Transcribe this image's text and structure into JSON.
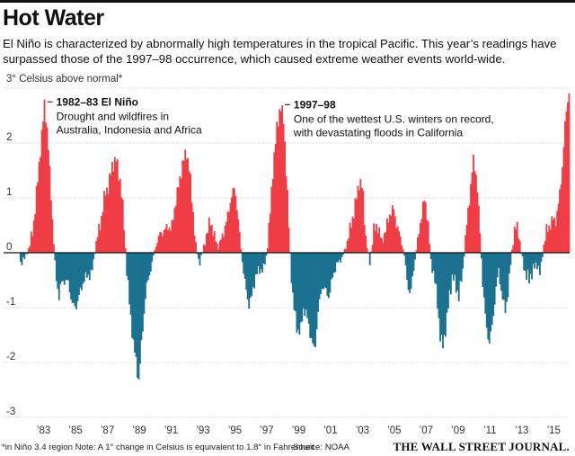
{
  "header": {
    "title": "Hot Water",
    "subtitle": "El Niño is characterized by abnormally high temperatures in the tropical Pacific. This year’s readings have surpassed those of the 1997–98 occurrence, which caused extreme weather events world-wide."
  },
  "footer": {
    "note": "*in Niño 3.4 region    Note: A 1° change in Celsius is equivalent to 1.8° in Fahrenheit",
    "source": "Source: NOAA",
    "logo": "THE WALL STREET JOURNAL."
  },
  "colors": {
    "positive": "#f03c44",
    "negative": "#1a7190"
  },
  "chart_data": {
    "type": "bar",
    "unit_label": "3° Celsius above normal*",
    "ylim": [
      -3,
      3
    ],
    "yticks": [
      3,
      2,
      1,
      0,
      -1,
      -2,
      -3
    ],
    "ytick_labels": [
      "3°",
      "2",
      "1",
      "0",
      "-1",
      "-2",
      "-3"
    ],
    "xlim": [
      1981.5,
      2016.0
    ],
    "xticks": [
      1983,
      1985,
      1987,
      1989,
      1991,
      1993,
      1995,
      1997,
      1999,
      2001,
      2003,
      2005,
      2007,
      2009,
      2011,
      2013,
      2015
    ],
    "xtick_labels": [
      "’83",
      "’85",
      "’87",
      "’89",
      "’91",
      "’93",
      "’95",
      "’97",
      "’99",
      "’01",
      "’03",
      "’05",
      "’07",
      "’09",
      "’11",
      "’13",
      "’15"
    ],
    "grid": true,
    "annotations": [
      {
        "title": "1982–83 El Niño",
        "text": [
          "Drought and wildfires in",
          "Australia, Indonesia and Africa"
        ],
        "x": 1983.0,
        "y": 2.75
      },
      {
        "title": "1997–98",
        "text": [
          "One of the wettest U.S. winters on record,",
          "with devastating floods in California"
        ],
        "x": 1997.9,
        "y": 2.7
      }
    ],
    "anchors": [
      [
        1981.5,
        -0.2
      ],
      [
        1981.8,
        -0.1
      ],
      [
        1982.1,
        0.1
      ],
      [
        1982.4,
        0.6
      ],
      [
        1982.7,
        1.6
      ],
      [
        1982.9,
        2.2
      ],
      [
        1983.05,
        2.75
      ],
      [
        1983.25,
        2.1
      ],
      [
        1983.45,
        1.1
      ],
      [
        1983.6,
        0.3
      ],
      [
        1983.75,
        -0.4
      ],
      [
        1983.95,
        -0.8
      ],
      [
        1984.1,
        -0.55
      ],
      [
        1984.3,
        -0.5
      ],
      [
        1984.55,
        -0.55
      ],
      [
        1984.8,
        -0.95
      ],
      [
        1985.0,
        -1.0
      ],
      [
        1985.25,
        -0.75
      ],
      [
        1985.5,
        -0.5
      ],
      [
        1985.8,
        -0.4
      ],
      [
        1986.0,
        -0.4
      ],
      [
        1986.3,
        0.2
      ],
      [
        1986.6,
        0.6
      ],
      [
        1986.85,
        1.1
      ],
      [
        1987.05,
        1.2
      ],
      [
        1987.3,
        1.6
      ],
      [
        1987.55,
        1.7
      ],
      [
        1987.8,
        1.3
      ],
      [
        1988.0,
        0.7
      ],
      [
        1988.2,
        -0.3
      ],
      [
        1988.4,
        -1.0
      ],
      [
        1988.6,
        -1.6
      ],
      [
        1988.8,
        -2.0
      ],
      [
        1988.95,
        -2.35
      ],
      [
        1989.15,
        -1.6
      ],
      [
        1989.4,
        -0.7
      ],
      [
        1989.7,
        -0.3
      ],
      [
        1990.0,
        0.1
      ],
      [
        1990.3,
        0.35
      ],
      [
        1990.6,
        0.4
      ],
      [
        1990.8,
        0.5
      ],
      [
        1991.0,
        0.4
      ],
      [
        1991.2,
        0.8
      ],
      [
        1991.45,
        1.2
      ],
      [
        1991.7,
        1.6
      ],
      [
        1991.95,
        1.85
      ],
      [
        1992.15,
        1.5
      ],
      [
        1992.35,
        0.8
      ],
      [
        1992.55,
        0.1
      ],
      [
        1992.75,
        -0.2
      ],
      [
        1992.95,
        0.0
      ],
      [
        1993.2,
        0.3
      ],
      [
        1993.45,
        0.6
      ],
      [
        1993.7,
        0.3
      ],
      [
        1993.95,
        0.1
      ],
      [
        1994.2,
        0.3
      ],
      [
        1994.5,
        0.6
      ],
      [
        1994.75,
        1.0
      ],
      [
        1995.0,
        1.2
      ],
      [
        1995.2,
        0.6
      ],
      [
        1995.4,
        0.0
      ],
      [
        1995.6,
        -0.5
      ],
      [
        1995.85,
        -0.95
      ],
      [
        1996.05,
        -0.8
      ],
      [
        1996.3,
        -0.4
      ],
      [
        1996.6,
        -0.3
      ],
      [
        1996.8,
        -0.3
      ],
      [
        1997.0,
        0.0
      ],
      [
        1997.2,
        0.7
      ],
      [
        1997.4,
        1.6
      ],
      [
        1997.6,
        2.2
      ],
      [
        1997.85,
        2.7
      ],
      [
        1998.05,
        2.4
      ],
      [
        1998.25,
        1.3
      ],
      [
        1998.45,
        0.0
      ],
      [
        1998.65,
        -0.9
      ],
      [
        1998.9,
        -1.4
      ],
      [
        1999.1,
        -1.45
      ],
      [
        1999.3,
        -1.0
      ],
      [
        1999.55,
        -1.2
      ],
      [
        1999.8,
        -1.6
      ],
      [
        2000.0,
        -1.8
      ],
      [
        2000.2,
        -1.1
      ],
      [
        2000.45,
        -0.6
      ],
      [
        2000.7,
        -0.7
      ],
      [
        2000.9,
        -0.8
      ],
      [
        2001.15,
        -0.4
      ],
      [
        2001.4,
        -0.2
      ],
      [
        2001.7,
        -0.1
      ],
      [
        2001.95,
        0.1
      ],
      [
        2002.2,
        0.4
      ],
      [
        2002.5,
        0.8
      ],
      [
        2002.8,
        1.3
      ],
      [
        2003.0,
        1.2
      ],
      [
        2003.2,
        0.3
      ],
      [
        2003.45,
        -0.2
      ],
      [
        2003.7,
        0.4
      ],
      [
        2003.95,
        0.5
      ],
      [
        2004.2,
        0.2
      ],
      [
        2004.45,
        0.4
      ],
      [
        2004.7,
        0.7
      ],
      [
        2004.95,
        0.8
      ],
      [
        2005.15,
        0.5
      ],
      [
        2005.35,
        0.3
      ],
      [
        2005.6,
        0.0
      ],
      [
        2005.8,
        -0.5
      ],
      [
        2006.0,
        -0.8
      ],
      [
        2006.2,
        -0.3
      ],
      [
        2006.4,
        0.1
      ],
      [
        2006.65,
        0.6
      ],
      [
        2006.9,
        1.0
      ],
      [
        2007.1,
        0.6
      ],
      [
        2007.3,
        -0.2
      ],
      [
        2007.5,
        -0.4
      ],
      [
        2007.7,
        -0.9
      ],
      [
        2007.9,
        -1.6
      ],
      [
        2008.05,
        -1.7
      ],
      [
        2008.25,
        -1.3
      ],
      [
        2008.45,
        -0.8
      ],
      [
        2008.65,
        -0.4
      ],
      [
        2008.85,
        -0.6
      ],
      [
        2009.05,
        -0.8
      ],
      [
        2009.3,
        -0.3
      ],
      [
        2009.5,
        0.4
      ],
      [
        2009.75,
        1.1
      ],
      [
        2009.95,
        1.7
      ],
      [
        2010.15,
        1.4
      ],
      [
        2010.35,
        0.5
      ],
      [
        2010.55,
        -0.6
      ],
      [
        2010.75,
        -1.3
      ],
      [
        2010.95,
        -1.65
      ],
      [
        2011.15,
        -1.3
      ],
      [
        2011.35,
        -0.7
      ],
      [
        2011.55,
        -0.3
      ],
      [
        2011.75,
        -0.8
      ],
      [
        2011.95,
        -1.05
      ],
      [
        2012.15,
        -0.7
      ],
      [
        2012.35,
        0.0
      ],
      [
        2012.55,
        0.4
      ],
      [
        2012.75,
        0.5
      ],
      [
        2012.95,
        0.0
      ],
      [
        2013.2,
        -0.35
      ],
      [
        2013.45,
        -0.5
      ],
      [
        2013.7,
        -0.3
      ],
      [
        2013.95,
        -0.2
      ],
      [
        2014.15,
        -0.4
      ],
      [
        2014.35,
        0.1
      ],
      [
        2014.55,
        0.4
      ],
      [
        2014.75,
        0.5
      ],
      [
        2014.95,
        0.6
      ],
      [
        2015.15,
        0.6
      ],
      [
        2015.35,
        1.0
      ],
      [
        2015.55,
        1.6
      ],
      [
        2015.75,
        2.5
      ],
      [
        2015.95,
        2.95
      ]
    ]
  }
}
